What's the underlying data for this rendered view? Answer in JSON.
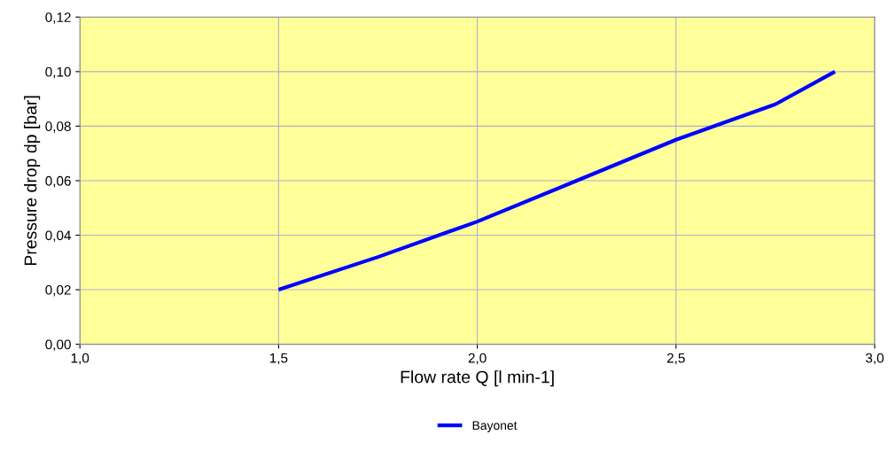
{
  "chart_data": {
    "type": "line",
    "xlabel": "Flow rate Q [l min-1]",
    "ylabel": "Pressure drop dp [bar]",
    "x": [
      1.5,
      1.75,
      2.0,
      2.25,
      2.5,
      2.75,
      2.9
    ],
    "series": [
      {
        "name": "Bayonet",
        "color": "#0000ff",
        "values": [
          0.02,
          0.032,
          0.045,
          0.06,
          0.075,
          0.088,
          0.1
        ]
      }
    ],
    "xlim": [
      1.0,
      3.0
    ],
    "xticks": [
      {
        "value": 1.0,
        "label": "1,0"
      },
      {
        "value": 1.5,
        "label": "1,5"
      },
      {
        "value": 2.0,
        "label": "2,0"
      },
      {
        "value": 2.5,
        "label": "2,5"
      },
      {
        "value": 3.0,
        "label": "3,0"
      }
    ],
    "ylim": [
      0,
      0.12
    ],
    "yticks": [
      {
        "value": 0,
        "label": "0,00"
      },
      {
        "value": 0.02,
        "label": "0,02"
      },
      {
        "value": 0.04,
        "label": "0,04"
      },
      {
        "value": 0.06,
        "label": "0,06"
      },
      {
        "value": 0.08,
        "label": "0,08"
      },
      {
        "value": 0.1,
        "label": "0,10"
      },
      {
        "value": 0.12,
        "label": "0,12"
      }
    ],
    "grid": true,
    "legend": "bottom",
    "marker": "none",
    "line_style": "solid"
  }
}
